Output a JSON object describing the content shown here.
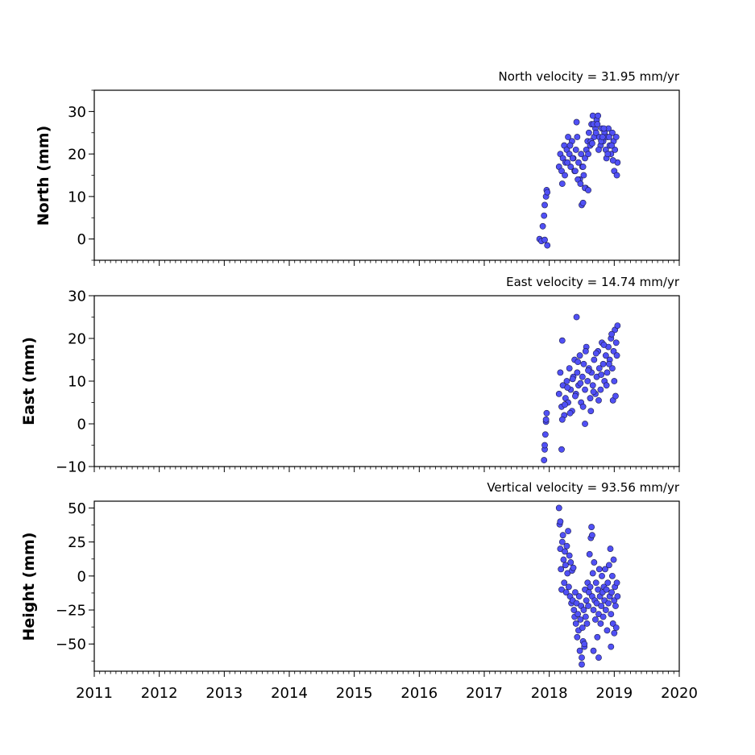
{
  "chart_data": [
    {
      "type": "scatter",
      "title": "North velocity = 31.95 mm/yr",
      "xlabel": "",
      "ylabel": "North (mm)",
      "xlim": [
        2011,
        2020
      ],
      "ylim": [
        -5,
        35
      ],
      "yticks": [
        0,
        10,
        20,
        30
      ],
      "xticks": [
        2011,
        2012,
        2013,
        2014,
        2015,
        2016,
        2017,
        2018,
        2019,
        2020
      ],
      "xtick_labels_shown": false,
      "grid": false,
      "x": [
        2017.85,
        2017.88,
        2017.9,
        2017.92,
        2017.93,
        2017.95,
        2017.96,
        2017.97,
        2017.93,
        2017.97,
        2018.15,
        2018.17,
        2018.19,
        2018.21,
        2018.23,
        2018.25,
        2018.27,
        2018.29,
        2018.31,
        2018.33,
        2018.35,
        2018.37,
        2018.39,
        2018.41,
        2018.43,
        2018.45,
        2018.47,
        2018.49,
        2018.51,
        2018.53,
        2018.55,
        2018.57,
        2018.59,
        2018.61,
        2018.63,
        2018.65,
        2018.67,
        2018.69,
        2018.71,
        2018.73,
        2018.75,
        2018.77,
        2018.79,
        2018.81,
        2018.83,
        2018.85,
        2018.87,
        2018.89,
        2018.91,
        2018.93,
        2018.95,
        2018.97,
        2018.99,
        2019.01,
        2019.03,
        2019.05,
        2018.2,
        2018.24,
        2018.28,
        2018.32,
        2018.36,
        2018.4,
        2018.44,
        2018.48,
        2018.52,
        2018.56,
        2018.6,
        2018.64,
        2018.68,
        2018.72,
        2018.76,
        2018.8,
        2018.84,
        2018.88,
        2018.92,
        2018.96,
        2019.0,
        2019.04,
        2018.42,
        2018.5,
        2018.52,
        2018.55,
        2018.6,
        2018.66,
        2018.74,
        2018.82,
        2018.9,
        2018.98
      ],
      "y": [
        0.0,
        -0.5,
        3.0,
        5.5,
        8.0,
        10.0,
        11.5,
        -1.5,
        -0.2,
        11.0,
        17.0,
        20.0,
        16.0,
        19.0,
        22.0,
        18.0,
        21.0,
        24.0,
        20.0,
        17.0,
        23.0,
        19.0,
        16.0,
        21.0,
        24.0,
        18.0,
        14.0,
        20.0,
        17.0,
        15.0,
        19.0,
        21.0,
        23.0,
        25.0,
        22.0,
        27.0,
        29.0,
        24.0,
        26.0,
        28.0,
        29.0,
        24.0,
        22.0,
        26.0,
        23.0,
        25.0,
        21.0,
        24.0,
        26.0,
        22.0,
        20.0,
        25.0,
        23.0,
        21.0,
        24.0,
        18.0,
        13.0,
        15.0,
        18.0,
        22.0,
        19.0,
        16.0,
        14.0,
        13.0,
        17.0,
        12.0,
        20.0,
        23.0,
        27.0,
        25.0,
        21.0,
        23.0,
        26.0,
        19.0,
        24.0,
        22.0,
        16.0,
        15.0,
        27.5,
        8.0,
        8.5,
        12.0,
        11.5,
        22.5,
        27.0,
        24.0,
        20.0,
        18.5
      ]
    },
    {
      "type": "scatter",
      "title": "East velocity = 14.74 mm/yr",
      "xlabel": "",
      "ylabel": "East (mm)",
      "xlim": [
        2011,
        2020
      ],
      "ylim": [
        -10,
        30
      ],
      "yticks": [
        -10,
        0,
        10,
        20,
        30
      ],
      "xticks": [
        2011,
        2012,
        2013,
        2014,
        2015,
        2016,
        2017,
        2018,
        2019,
        2020
      ],
      "xtick_labels_shown": false,
      "grid": false,
      "x": [
        2017.92,
        2017.93,
        2017.94,
        2017.95,
        2017.96,
        2017.93,
        2017.95,
        2018.15,
        2018.17,
        2018.19,
        2018.21,
        2018.23,
        2018.25,
        2018.27,
        2018.29,
        2018.31,
        2018.33,
        2018.35,
        2018.37,
        2018.39,
        2018.41,
        2018.43,
        2018.45,
        2018.47,
        2018.49,
        2018.51,
        2018.53,
        2018.55,
        2018.57,
        2018.59,
        2018.61,
        2018.63,
        2018.65,
        2018.67,
        2018.69,
        2018.71,
        2018.73,
        2018.75,
        2018.77,
        2018.79,
        2018.81,
        2018.83,
        2018.85,
        2018.87,
        2018.89,
        2018.91,
        2018.93,
        2018.95,
        2018.97,
        2018.99,
        2019.01,
        2019.03,
        2019.05,
        2018.2,
        2018.24,
        2018.28,
        2018.32,
        2018.36,
        2018.4,
        2018.44,
        2018.48,
        2018.52,
        2018.56,
        2018.6,
        2018.64,
        2018.68,
        2018.72,
        2018.76,
        2018.8,
        2018.84,
        2018.88,
        2018.92,
        2018.96,
        2019.0,
        2019.04,
        2018.42,
        2018.19,
        2018.2,
        2018.55,
        2018.98,
        2019.02
      ],
      "y": [
        -8.5,
        -6.0,
        -2.5,
        0.5,
        2.5,
        -5.0,
        1.0,
        7.0,
        12.0,
        4.0,
        9.0,
        2.0,
        6.0,
        10.0,
        5.0,
        13.0,
        8.0,
        3.0,
        11.0,
        15.0,
        7.0,
        12.0,
        9.0,
        16.0,
        5.0,
        11.0,
        14.0,
        8.0,
        18.0,
        10.0,
        13.0,
        6.0,
        12.0,
        9.0,
        15.0,
        7.0,
        11.0,
        17.0,
        13.0,
        8.0,
        19.0,
        14.0,
        10.0,
        16.0,
        12.0,
        18.0,
        15.0,
        20.0,
        13.0,
        17.0,
        22.0,
        19.0,
        23.0,
        1.0,
        4.5,
        8.5,
        2.5,
        10.5,
        6.5,
        14.5,
        9.5,
        4.0,
        17.0,
        12.5,
        3.0,
        7.5,
        16.5,
        5.5,
        11.5,
        18.5,
        9.0,
        14.0,
        21.0,
        10.0,
        16.0,
        25.0,
        -6.0,
        19.5,
        0.0,
        5.5,
        6.5
      ]
    },
    {
      "type": "scatter",
      "title": "Vertical velocity = 93.56 mm/yr",
      "xlabel": "",
      "ylabel": "Height (mm)",
      "xlim": [
        2011,
        2020
      ],
      "ylim": [
        -70,
        55
      ],
      "yticks": [
        -50,
        -25,
        0,
        25,
        50
      ],
      "xticks": [
        2011,
        2012,
        2013,
        2014,
        2015,
        2016,
        2017,
        2018,
        2019,
        2020
      ],
      "xtick_labels_shown": true,
      "grid": false,
      "x": [
        2018.15,
        2018.16,
        2018.17,
        2018.18,
        2018.19,
        2018.2,
        2018.21,
        2018.22,
        2018.23,
        2018.24,
        2018.25,
        2018.26,
        2018.27,
        2018.28,
        2018.29,
        2018.3,
        2018.31,
        2018.32,
        2018.33,
        2018.34,
        2018.35,
        2018.36,
        2018.37,
        2018.38,
        2018.39,
        2018.4,
        2018.41,
        2018.42,
        2018.43,
        2018.44,
        2018.45,
        2018.46,
        2018.47,
        2018.48,
        2018.49,
        2018.5,
        2018.51,
        2018.52,
        2018.53,
        2018.54,
        2018.55,
        2018.56,
        2018.57,
        2018.58,
        2018.59,
        2018.6,
        2018.61,
        2018.62,
        2018.63,
        2018.64,
        2018.65,
        2018.66,
        2018.67,
        2018.68,
        2018.69,
        2018.7,
        2018.71,
        2018.72,
        2018.73,
        2018.74,
        2018.75,
        2018.76,
        2018.77,
        2018.78,
        2018.79,
        2018.8,
        2018.81,
        2018.82,
        2018.83,
        2018.84,
        2018.85,
        2018.86,
        2018.87,
        2018.88,
        2018.89,
        2018.9,
        2018.91,
        2018.92,
        2018.93,
        2018.94,
        2018.95,
        2018.96,
        2018.97,
        2018.98,
        2018.99,
        2019.0,
        2019.01,
        2019.02,
        2019.03,
        2019.04,
        2019.05,
        2018.17,
        2018.5,
        2018.54,
        2018.66,
        2018.68,
        2018.76,
        2018.95,
        2019.0
      ],
      "y": [
        50.0,
        38.0,
        20.0,
        5.0,
        -10.0,
        25.0,
        30.0,
        12.0,
        -5.0,
        18.0,
        8.0,
        -12.0,
        22.0,
        2.0,
        33.0,
        -8.0,
        15.0,
        -15.0,
        10.0,
        -20.0,
        4.0,
        -18.0,
        6.0,
        -25.0,
        -30.0,
        -12.0,
        -35.0,
        -20.0,
        -45.0,
        -28.0,
        -40.0,
        -15.0,
        -55.0,
        -32.0,
        -22.0,
        -60.0,
        -38.0,
        -48.0,
        -25.0,
        -52.0,
        -10.0,
        -30.0,
        -18.0,
        -35.0,
        -5.0,
        -22.0,
        -12.0,
        16.0,
        -8.0,
        28.0,
        36.0,
        -15.0,
        2.0,
        -25.0,
        10.0,
        -18.0,
        -32.0,
        -5.0,
        -20.0,
        -45.0,
        -10.0,
        -28.0,
        5.0,
        -15.0,
        -35.0,
        -22.0,
        0.0,
        -12.0,
        -30.0,
        -8.0,
        -18.0,
        5.0,
        -25.0,
        -10.0,
        -40.0,
        -5.0,
        -20.0,
        8.0,
        -15.0,
        20.0,
        -28.0,
        -12.0,
        0.0,
        -35.0,
        12.0,
        -18.0,
        -8.0,
        -22.0,
        -38.0,
        -5.0,
        -15.0,
        40.0,
        -65.0,
        -50.0,
        30.0,
        -55.0,
        -60.0,
        -52.0,
        -42.0
      ]
    }
  ],
  "colors": {
    "marker_fill": "#5050f5",
    "marker_edge": "#1a1a4a"
  }
}
